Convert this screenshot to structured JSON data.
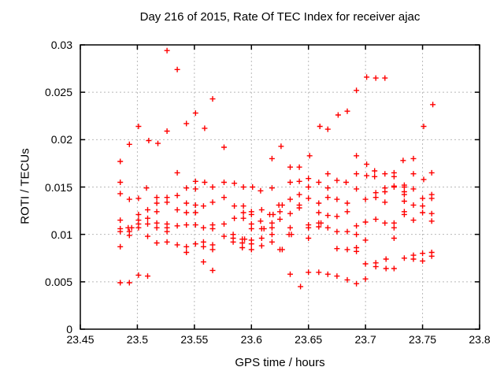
{
  "title": "Day 216 of 2015, Rate Of TEC Index for receiver ajac",
  "chart_data": {
    "type": "scatter",
    "title": "Day 216 of 2015, Rate Of TEC Index for receiver ajac",
    "xlabel": "GPS time / hours",
    "ylabel": "ROTI / TECUs",
    "xlim": [
      23.45,
      23.8
    ],
    "ylim": [
      0,
      0.03
    ],
    "xticks": [
      23.45,
      23.5,
      23.55,
      23.6,
      23.65,
      23.7,
      23.75,
      23.8
    ],
    "xtick_labels": [
      "23.45",
      "23.5",
      "23.55",
      "23.6",
      "23.65",
      "23.7",
      "23.75",
      "23.8"
    ],
    "yticks": [
      0,
      0.005,
      0.01,
      0.015,
      0.02,
      0.025,
      0.03
    ],
    "ytick_labels": [
      "0",
      "0.005",
      "0.01",
      "0.015",
      "0.02",
      "0.025",
      "0.03"
    ],
    "grid": true,
    "legend": "none",
    "marker": "plus",
    "marker_color": "#ff0000",
    "grid_color": "#b9b9b9",
    "axis_color": "#000000",
    "background_color": "#ffffff",
    "series": [
      {
        "name": "ROTI",
        "points": [
          [
            23.526,
            0.0294
          ],
          [
            23.535,
            0.0274
          ],
          [
            23.566,
            0.0243
          ],
          [
            23.551,
            0.0228
          ],
          [
            23.543,
            0.0217
          ],
          [
            23.501,
            0.0214
          ],
          [
            23.559,
            0.0212
          ],
          [
            23.526,
            0.0209
          ],
          [
            23.51,
            0.0199
          ],
          [
            23.518,
            0.0196
          ],
          [
            23.493,
            0.0195
          ],
          [
            23.485,
            0.0177
          ],
          [
            23.535,
            0.0165
          ],
          [
            23.485,
            0.0155
          ],
          [
            23.551,
            0.0156
          ],
          [
            23.559,
            0.0155
          ],
          [
            23.684,
            0.023
          ],
          [
            23.676,
            0.0226
          ],
          [
            23.66,
            0.0214
          ],
          [
            23.667,
            0.0211
          ],
          [
            23.576,
            0.0192
          ],
          [
            23.626,
            0.0193
          ],
          [
            23.618,
            0.018
          ],
          [
            23.651,
            0.0183
          ],
          [
            23.634,
            0.0171
          ],
          [
            23.642,
            0.0171
          ],
          [
            23.667,
            0.0164
          ],
          [
            23.576,
            0.0155
          ],
          [
            23.585,
            0.0154
          ],
          [
            23.634,
            0.0155
          ],
          [
            23.642,
            0.0156
          ],
          [
            23.65,
            0.0159
          ],
          [
            23.659,
            0.0155
          ],
          [
            23.675,
            0.0157
          ],
          [
            23.701,
            0.0266
          ],
          [
            23.709,
            0.0265
          ],
          [
            23.717,
            0.0265
          ],
          [
            23.692,
            0.0252
          ],
          [
            23.759,
            0.0237
          ],
          [
            23.751,
            0.0214
          ],
          [
            23.692,
            0.0183
          ],
          [
            23.701,
            0.0174
          ],
          [
            23.733,
            0.0178
          ],
          [
            23.742,
            0.018
          ],
          [
            23.692,
            0.0164
          ],
          [
            23.701,
            0.0162
          ],
          [
            23.708,
            0.0167
          ],
          [
            23.708,
            0.0161
          ],
          [
            23.717,
            0.0164
          ],
          [
            23.725,
            0.0165
          ],
          [
            23.725,
            0.0161
          ],
          [
            23.742,
            0.0164
          ],
          [
            23.758,
            0.0165
          ],
          [
            23.751,
            0.0158
          ],
          [
            23.683,
            0.0155
          ],
          [
            23.725,
            0.0151
          ],
          [
            23.734,
            0.0152
          ],
          [
            23.508,
            0.0149
          ],
          [
            23.543,
            0.0149
          ],
          [
            23.551,
            0.0148
          ],
          [
            23.566,
            0.015
          ],
          [
            23.485,
            0.0143
          ],
          [
            23.535,
            0.0141
          ],
          [
            23.517,
            0.0139
          ],
          [
            23.526,
            0.0139
          ],
          [
            23.493,
            0.0137
          ],
          [
            23.501,
            0.0138
          ],
          [
            23.517,
            0.0133
          ],
          [
            23.526,
            0.0134
          ],
          [
            23.543,
            0.0133
          ],
          [
            23.551,
            0.0131
          ],
          [
            23.558,
            0.013
          ],
          [
            23.566,
            0.0134
          ],
          [
            23.509,
            0.0126
          ],
          [
            23.517,
            0.0124
          ],
          [
            23.535,
            0.0126
          ],
          [
            23.543,
            0.0123
          ],
          [
            23.551,
            0.0123
          ],
          [
            23.501,
            0.0121
          ],
          [
            23.485,
            0.0115
          ],
          [
            23.501,
            0.0115
          ],
          [
            23.509,
            0.0117
          ],
          [
            23.501,
            0.0111
          ],
          [
            23.492,
            0.0107
          ],
          [
            23.495,
            0.0107
          ],
          [
            23.485,
            0.0106
          ],
          [
            23.485,
            0.0103
          ],
          [
            23.501,
            0.0107
          ],
          [
            23.509,
            0.0111
          ],
          [
            23.517,
            0.0112
          ],
          [
            23.517,
            0.0107
          ],
          [
            23.526,
            0.0111
          ],
          [
            23.526,
            0.0107
          ],
          [
            23.526,
            0.0103
          ],
          [
            23.535,
            0.0109
          ],
          [
            23.543,
            0.011
          ],
          [
            23.551,
            0.011
          ],
          [
            23.558,
            0.0107
          ],
          [
            23.566,
            0.011
          ],
          [
            23.566,
            0.0106
          ],
          [
            23.493,
            0.0103
          ],
          [
            23.493,
            0.0099
          ],
          [
            23.509,
            0.0098
          ],
          [
            23.517,
            0.0091
          ],
          [
            23.526,
            0.0092
          ],
          [
            23.535,
            0.0089
          ],
          [
            23.543,
            0.0087
          ],
          [
            23.551,
            0.009
          ],
          [
            23.558,
            0.0092
          ],
          [
            23.558,
            0.0087
          ],
          [
            23.566,
            0.0089
          ],
          [
            23.566,
            0.0084
          ],
          [
            23.485,
            0.0087
          ],
          [
            23.543,
            0.0081
          ],
          [
            23.558,
            0.0071
          ],
          [
            23.566,
            0.0062
          ],
          [
            23.501,
            0.0057
          ],
          [
            23.509,
            0.0056
          ],
          [
            23.485,
            0.0049
          ],
          [
            23.493,
            0.0049
          ],
          [
            23.593,
            0.015
          ],
          [
            23.601,
            0.015
          ],
          [
            23.618,
            0.0149
          ],
          [
            23.65,
            0.015
          ],
          [
            23.667,
            0.0149
          ],
          [
            23.608,
            0.0146
          ],
          [
            23.576,
            0.0139
          ],
          [
            23.642,
            0.0142
          ],
          [
            23.634,
            0.0137
          ],
          [
            23.65,
            0.0138
          ],
          [
            23.667,
            0.0139
          ],
          [
            23.675,
            0.0137
          ],
          [
            23.684,
            0.0133
          ],
          [
            23.585,
            0.013
          ],
          [
            23.593,
            0.013
          ],
          [
            23.624,
            0.0131
          ],
          [
            23.627,
            0.0131
          ],
          [
            23.642,
            0.0131
          ],
          [
            23.642,
            0.0128
          ],
          [
            23.659,
            0.0133
          ],
          [
            23.593,
            0.0123
          ],
          [
            23.6,
            0.0124
          ],
          [
            23.6,
            0.0121
          ],
          [
            23.585,
            0.0117
          ],
          [
            23.593,
            0.0117
          ],
          [
            23.609,
            0.0126
          ],
          [
            23.616,
            0.0121
          ],
          [
            23.619,
            0.0121
          ],
          [
            23.625,
            0.0124
          ],
          [
            23.625,
            0.0116
          ],
          [
            23.634,
            0.0122
          ],
          [
            23.659,
            0.0123
          ],
          [
            23.667,
            0.012
          ],
          [
            23.675,
            0.0119
          ],
          [
            23.684,
            0.0124
          ],
          [
            23.576,
            0.0111
          ],
          [
            23.6,
            0.0111
          ],
          [
            23.6,
            0.0106
          ],
          [
            23.608,
            0.0114
          ],
          [
            23.609,
            0.0106
          ],
          [
            23.611,
            0.0106
          ],
          [
            23.618,
            0.0112
          ],
          [
            23.618,
            0.0107
          ],
          [
            23.634,
            0.0107
          ],
          [
            23.65,
            0.011
          ],
          [
            23.65,
            0.0107
          ],
          [
            23.659,
            0.0112
          ],
          [
            23.661,
            0.0112
          ],
          [
            23.659,
            0.0108
          ],
          [
            23.667,
            0.0107
          ],
          [
            23.675,
            0.0103
          ],
          [
            23.684,
            0.0103
          ],
          [
            23.576,
            0.0098
          ],
          [
            23.584,
            0.01
          ],
          [
            23.584,
            0.0096
          ],
          [
            23.584,
            0.0092
          ],
          [
            23.592,
            0.0095
          ],
          [
            23.594,
            0.0095
          ],
          [
            23.592,
            0.0091
          ],
          [
            23.592,
            0.0086
          ],
          [
            23.6,
            0.0094
          ],
          [
            23.6,
            0.009
          ],
          [
            23.6,
            0.0084
          ],
          [
            23.609,
            0.0096
          ],
          [
            23.609,
            0.0088
          ],
          [
            23.618,
            0.01
          ],
          [
            23.618,
            0.0092
          ],
          [
            23.625,
            0.0084
          ],
          [
            23.627,
            0.0084
          ],
          [
            23.633,
            0.01
          ],
          [
            23.635,
            0.01
          ],
          [
            23.65,
            0.0096
          ],
          [
            23.675,
            0.0085
          ],
          [
            23.684,
            0.0084
          ],
          [
            23.634,
            0.0058
          ],
          [
            23.65,
            0.006
          ],
          [
            23.659,
            0.006
          ],
          [
            23.667,
            0.0058
          ],
          [
            23.675,
            0.0056
          ],
          [
            23.684,
            0.0052
          ],
          [
            23.643,
            0.0045
          ],
          [
            23.692,
            0.0148
          ],
          [
            23.717,
            0.0149
          ],
          [
            23.725,
            0.015
          ],
          [
            23.734,
            0.015
          ],
          [
            23.742,
            0.0148
          ],
          [
            23.709,
            0.0144
          ],
          [
            23.717,
            0.0145
          ],
          [
            23.734,
            0.0145
          ],
          [
            23.7,
            0.0137
          ],
          [
            23.709,
            0.0139
          ],
          [
            23.717,
            0.0134
          ],
          [
            23.734,
            0.0142
          ],
          [
            23.734,
            0.0135
          ],
          [
            23.742,
            0.0131
          ],
          [
            23.75,
            0.0138
          ],
          [
            23.75,
            0.013
          ],
          [
            23.758,
            0.0142
          ],
          [
            23.758,
            0.0138
          ],
          [
            23.734,
            0.0124
          ],
          [
            23.734,
            0.0121
          ],
          [
            23.75,
            0.0123
          ],
          [
            23.758,
            0.0122
          ],
          [
            23.758,
            0.0114
          ],
          [
            23.742,
            0.0115
          ],
          [
            23.692,
            0.0109
          ],
          [
            23.7,
            0.0113
          ],
          [
            23.709,
            0.0116
          ],
          [
            23.717,
            0.0112
          ],
          [
            23.725,
            0.0112
          ],
          [
            23.725,
            0.0107
          ],
          [
            23.692,
            0.01
          ],
          [
            23.7,
            0.0094
          ],
          [
            23.725,
            0.0096
          ],
          [
            23.692,
            0.0086
          ],
          [
            23.692,
            0.0082
          ],
          [
            23.75,
            0.008
          ],
          [
            23.758,
            0.0081
          ],
          [
            23.758,
            0.0077
          ],
          [
            23.734,
            0.0075
          ],
          [
            23.742,
            0.0078
          ],
          [
            23.742,
            0.0074
          ],
          [
            23.75,
            0.0072
          ],
          [
            23.718,
            0.0074
          ],
          [
            23.7,
            0.0069
          ],
          [
            23.709,
            0.007
          ],
          [
            23.709,
            0.0066
          ],
          [
            23.718,
            0.0064
          ],
          [
            23.725,
            0.0064
          ],
          [
            23.692,
            0.0048
          ],
          [
            23.7,
            0.0053
          ]
        ]
      }
    ]
  }
}
